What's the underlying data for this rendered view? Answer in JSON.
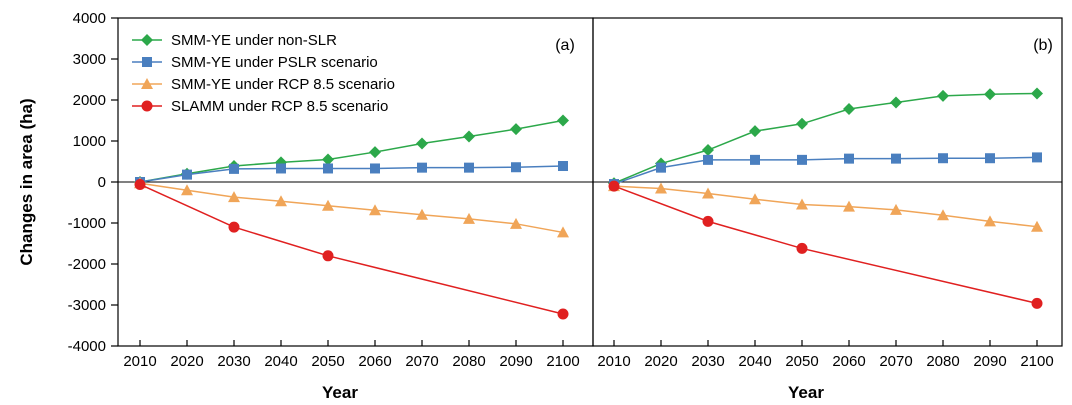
{
  "chart_data": {
    "type": "line",
    "ylabel": "Changes in area (ha)",
    "xlabel": "Year",
    "ylim": [
      -4000,
      4000
    ],
    "yticks": [
      4000,
      3000,
      2000,
      1000,
      0,
      -1000,
      -2000,
      -3000,
      -4000
    ],
    "xticks": [
      "2010",
      "2020",
      "2030",
      "2040",
      "2050",
      "2060",
      "2070",
      "2080",
      "2090",
      "2100"
    ],
    "legend_placement": "top-left",
    "grid": false,
    "colors": {
      "green": "#2ca84a",
      "blue": "#4a7fbf",
      "orange": "#f0a558",
      "red": "#e02020"
    },
    "panels": [
      {
        "label": "(a)",
        "series": [
          {
            "name": "SMM-YE under non-SLR",
            "color": "#2ca84a",
            "marker": "diamond",
            "x": [
              2010,
              2020,
              2030,
              2040,
              2050,
              2060,
              2070,
              2080,
              2090,
              2100
            ],
            "y": [
              0,
              200,
              390,
              480,
              550,
              730,
              940,
              1110,
              1290,
              1500
            ]
          },
          {
            "name": "SMM-YE under PSLR scenario",
            "color": "#4a7fbf",
            "marker": "square",
            "x": [
              2010,
              2020,
              2030,
              2040,
              2050,
              2060,
              2070,
              2080,
              2090,
              2100
            ],
            "y": [
              0,
              180,
              320,
              330,
              330,
              330,
              350,
              350,
              360,
              390
            ]
          },
          {
            "name": "SMM-YE under RCP 8.5 scenario",
            "color": "#f0a558",
            "marker": "triangle",
            "x": [
              2010,
              2020,
              2030,
              2040,
              2050,
              2060,
              2070,
              2080,
              2090,
              2100
            ],
            "y": [
              -30,
              -200,
              -370,
              -470,
              -580,
              -690,
              -800,
              -900,
              -1020,
              -1230
            ]
          },
          {
            "name": "SLAMM under RCP 8.5 scenario",
            "color": "#e02020",
            "marker": "circle",
            "x": [
              2010,
              2030,
              2050,
              2100
            ],
            "y": [
              -60,
              -1100,
              -1800,
              -3220
            ]
          }
        ]
      },
      {
        "label": "(b)",
        "series": [
          {
            "name": "SMM-YE under non-SLR",
            "color": "#2ca84a",
            "marker": "diamond",
            "x": [
              2010,
              2020,
              2030,
              2040,
              2050,
              2060,
              2070,
              2080,
              2090,
              2100
            ],
            "y": [
              -30,
              450,
              780,
              1240,
              1420,
              1780,
              1940,
              2100,
              2140,
              2160
            ]
          },
          {
            "name": "SMM-YE under PSLR scenario",
            "color": "#4a7fbf",
            "marker": "square",
            "x": [
              2010,
              2020,
              2030,
              2040,
              2050,
              2060,
              2070,
              2080,
              2090,
              2100
            ],
            "y": [
              -50,
              350,
              540,
              540,
              540,
              570,
              570,
              580,
              580,
              600
            ]
          },
          {
            "name": "SMM-YE under RCP 8.5 scenario",
            "color": "#f0a558",
            "marker": "triangle",
            "x": [
              2010,
              2020,
              2030,
              2040,
              2050,
              2060,
              2070,
              2080,
              2090,
              2100
            ],
            "y": [
              -100,
              -160,
              -280,
              -420,
              -550,
              -600,
              -680,
              -810,
              -960,
              -1090
            ]
          },
          {
            "name": "SLAMM under RCP 8.5 scenario",
            "color": "#e02020",
            "marker": "circle",
            "x": [
              2010,
              2030,
              2050,
              2100
            ],
            "y": [
              -100,
              -960,
              -1620,
              -2960
            ]
          }
        ]
      }
    ]
  }
}
